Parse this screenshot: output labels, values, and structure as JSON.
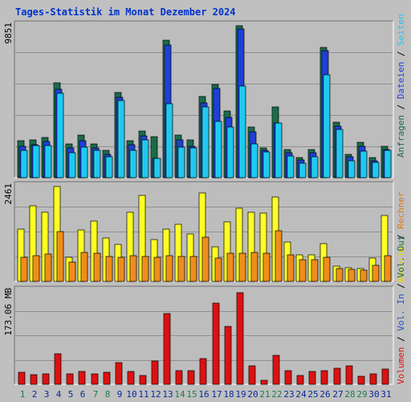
{
  "title": "Tages-Statistik im Monat Dezember 2024",
  "colors": {
    "frame_bg": "#c0c0c0",
    "plot_bg": "#bdbdbd",
    "grid": "#8f8f8f",
    "title": "#0033cc",
    "anfragen": "#1a6b4a",
    "dateien": "#1f3fd6",
    "seiten": "#1ec8f0",
    "besuche": "#ffff22",
    "rechner": "#f08c1a",
    "volumen": "#dd1111",
    "weekday": "#0a2a9a",
    "weekend": "#1a7f4a"
  },
  "legends": {
    "top": [
      {
        "text": "Anfragen",
        "color": "#1a6b4a"
      },
      {
        "text": "Dateien",
        "color": "#1f3fd6"
      },
      {
        "text": "Seiten",
        "color": "#1ec8f0"
      }
    ],
    "middle": [
      {
        "text": "Besuche",
        "color": "#e8d800"
      },
      {
        "text": "Rechner",
        "color": "#e07a10"
      }
    ],
    "bottom": [
      {
        "text": "Volumen",
        "color": "#dd1111"
      },
      {
        "text": "Vol. In",
        "color": "#2255cc"
      },
      {
        "text": "Vol. Out",
        "color": "#1a6b4a"
      }
    ]
  },
  "chart_data": [
    {
      "type": "bar",
      "panel": "top",
      "ymax_label": "9851",
      "ylim": [
        0,
        9851
      ],
      "categories": [
        "1",
        "2",
        "3",
        "4",
        "5",
        "6",
        "7",
        "8",
        "9",
        "10",
        "11",
        "12",
        "13",
        "14",
        "15",
        "16",
        "17",
        "18",
        "19",
        "20",
        "21",
        "22",
        "23",
        "24",
        "25",
        "26",
        "27",
        "28",
        "29",
        "30",
        "31"
      ],
      "series": [
        {
          "name": "Anfragen",
          "values": [
            2400,
            2450,
            2600,
            6150,
            2200,
            2750,
            2200,
            1750,
            5550,
            2400,
            3000,
            2650,
            8900,
            2750,
            2450,
            5250,
            6050,
            4350,
            9851,
            3300,
            1950,
            4600,
            1800,
            1300,
            1850,
            8450,
            3600,
            1500,
            2300,
            1300,
            2050
          ]
        },
        {
          "name": "Dateien",
          "values": [
            2050,
            2150,
            2350,
            5750,
            1950,
            2400,
            1950,
            1500,
            5200,
            2150,
            2700,
            1250,
            8600,
            2450,
            2050,
            4850,
            5800,
            3900,
            9650,
            2950,
            1750,
            3550,
            1600,
            1150,
            1600,
            8250,
            3350,
            1350,
            2050,
            1100,
            1850
          ]
        },
        {
          "name": "Seiten",
          "values": [
            1750,
            2100,
            2100,
            5450,
            1600,
            2000,
            1750,
            1350,
            5000,
            1750,
            2450,
            1250,
            4800,
            2000,
            1950,
            4600,
            3650,
            3300,
            5950,
            2200,
            1650,
            3550,
            1400,
            950,
            1350,
            6650,
            3150,
            1100,
            1700,
            1000,
            1750
          ]
        }
      ]
    },
    {
      "type": "bar",
      "panel": "middle",
      "ymax_label": "2461",
      "ylim": [
        0,
        2461
      ],
      "categories": [
        "1",
        "2",
        "3",
        "4",
        "5",
        "6",
        "7",
        "8",
        "9",
        "10",
        "11",
        "12",
        "13",
        "14",
        "15",
        "16",
        "17",
        "18",
        "19",
        "20",
        "21",
        "22",
        "23",
        "24",
        "25",
        "26",
        "27",
        "28",
        "29",
        "30",
        "31"
      ],
      "series": [
        {
          "name": "Besuche",
          "values": [
            1360,
            1970,
            1800,
            2461,
            620,
            1340,
            1560,
            1120,
            950,
            1800,
            2230,
            1080,
            1350,
            1480,
            1240,
            2300,
            900,
            1550,
            1890,
            1800,
            1770,
            2180,
            1030,
            690,
            690,
            990,
            400,
            360,
            330,
            610,
            1700
          ]
        },
        {
          "name": "Rechner",
          "values": [
            630,
            670,
            710,
            1290,
            500,
            750,
            720,
            640,
            620,
            660,
            650,
            630,
            660,
            640,
            640,
            1140,
            600,
            720,
            730,
            760,
            720,
            1320,
            680,
            560,
            570,
            620,
            330,
            320,
            300,
            410,
            670
          ]
        }
      ]
    },
    {
      "type": "bar",
      "panel": "bottom",
      "ymax_label": "173.06 MB",
      "ylim": [
        0,
        173.06
      ],
      "categories": [
        "1",
        "2",
        "3",
        "4",
        "5",
        "6",
        "7",
        "8",
        "9",
        "10",
        "11",
        "12",
        "13",
        "14",
        "15",
        "16",
        "17",
        "18",
        "19",
        "20",
        "21",
        "22",
        "23",
        "24",
        "25",
        "26",
        "27",
        "28",
        "29",
        "30",
        "31"
      ],
      "series": [
        {
          "name": "Volumen",
          "values": [
            22,
            18,
            19,
            57,
            20,
            24,
            19,
            22,
            40,
            24,
            17,
            44,
            131,
            25,
            25,
            48,
            150,
            107,
            170,
            34,
            8,
            54,
            25,
            16,
            24,
            25,
            30,
            35,
            15,
            20,
            28
          ]
        }
      ]
    }
  ],
  "weekend_days": [
    "1",
    "7",
    "8",
    "14",
    "15",
    "21",
    "22",
    "28",
    "29"
  ]
}
